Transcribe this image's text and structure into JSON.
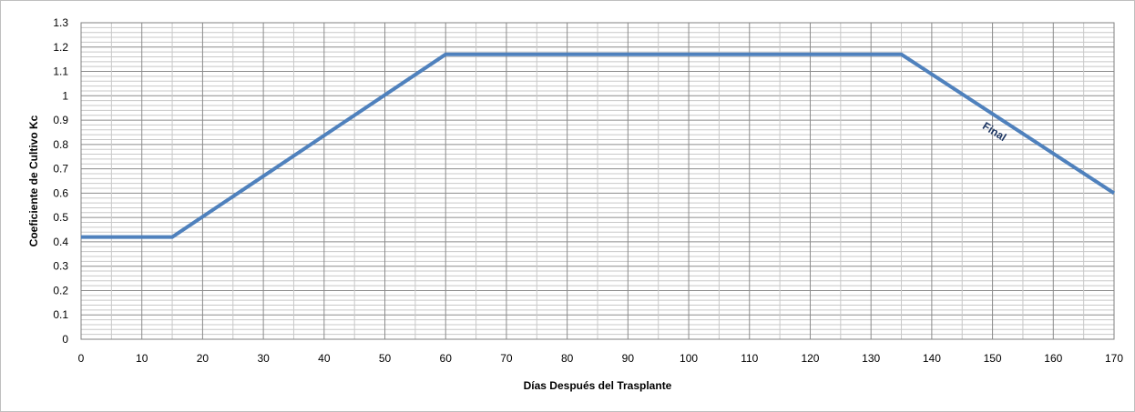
{
  "chart_data": {
    "type": "line",
    "title": "",
    "xlabel": "Días Después del Trasplante",
    "ylabel": "Coeficiente de Cultivo Kc",
    "xlim": [
      0,
      170
    ],
    "ylim": [
      0,
      1.3
    ],
    "xticks": [
      "0",
      "10",
      "20",
      "30",
      "40",
      "50",
      "60",
      "70",
      "80",
      "90",
      "100",
      "110",
      "120",
      "130",
      "140",
      "150",
      "160",
      "170"
    ],
    "yticks": [
      "0",
      "0.1",
      "0.2",
      "0.3",
      "0.4",
      "0.5",
      "0.6",
      "0.7",
      "0.8",
      "0.9",
      "1",
      "1.1",
      "1.2",
      "1.3"
    ],
    "grid": true,
    "legend": "none",
    "series": [
      {
        "color": "#4f81bd",
        "points": [
          [
            0,
            0.42
          ],
          [
            15,
            0.42
          ],
          [
            60,
            1.17
          ],
          [
            135,
            1.17
          ],
          [
            170,
            0.6
          ]
        ]
      }
    ],
    "annotations": [
      {
        "text": "Final",
        "x": 150,
        "y": 0.84
      }
    ]
  }
}
